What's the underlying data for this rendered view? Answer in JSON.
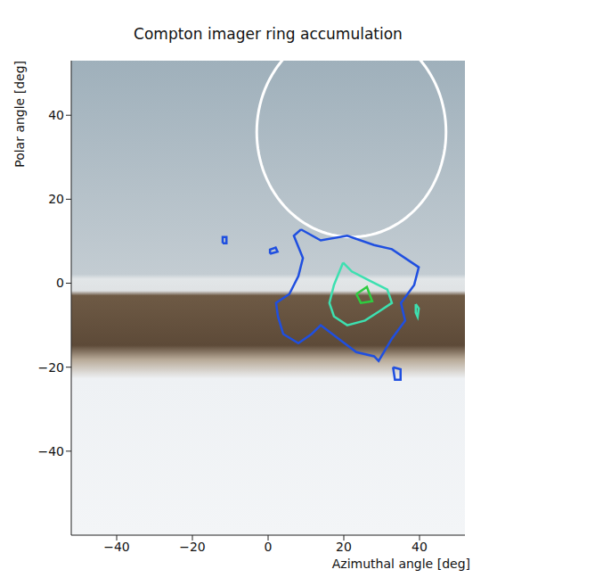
{
  "chart_data": {
    "type": "contour",
    "title": "Compton imager ring accumulation",
    "x_label": "Azimuthal angle [deg]",
    "y_label": "Polar angle [deg]",
    "xlim": [
      -52,
      52
    ],
    "ylim": [
      -60,
      53
    ],
    "xticks": [
      {
        "value": -40,
        "label": "−40"
      },
      {
        "value": -20,
        "label": "−20"
      },
      0,
      20,
      40
    ],
    "yticks": [
      {
        "value": -40,
        "label": "−40"
      },
      {
        "value": -20,
        "label": "−20"
      },
      0,
      20,
      40
    ],
    "grid": false,
    "ring": {
      "center": [
        22,
        36
      ],
      "radius": 25,
      "color": "#ffffff"
    },
    "contours": [
      {
        "color": "#1f4fe0",
        "points": [
          [
            8.7,
            12.8
          ],
          [
            13.9,
            10.2
          ],
          [
            20.9,
            11.3
          ],
          [
            28,
            9.1
          ],
          [
            32.7,
            8.1
          ],
          [
            39.8,
            3.8
          ],
          [
            38.6,
            -0.4
          ],
          [
            35.1,
            -4.7
          ],
          [
            36.2,
            -8.9
          ],
          [
            32.7,
            -13.2
          ],
          [
            29.2,
            -18.5
          ],
          [
            28,
            -17.4
          ],
          [
            23.3,
            -16.4
          ],
          [
            18.6,
            -13.2
          ],
          [
            13.9,
            -10
          ],
          [
            11.5,
            -12.1
          ],
          [
            8,
            -14.3
          ],
          [
            4,
            -12.1
          ],
          [
            2.6,
            -7.9
          ],
          [
            2.1,
            -4.7
          ],
          [
            5.6,
            -2.6
          ],
          [
            8,
            1.7
          ],
          [
            9.2,
            6
          ],
          [
            6.8,
            11.3
          ]
        ]
      },
      {
        "color": "#1f4fe0",
        "points": [
          [
            -12,
            9.5
          ],
          [
            -11,
            9.5
          ],
          [
            -11,
            11
          ],
          [
            -12,
            11
          ]
        ]
      },
      {
        "color": "#1f4fe0",
        "points": [
          [
            0.5,
            7
          ],
          [
            2.5,
            7.5
          ],
          [
            2,
            8.5
          ],
          [
            0.5,
            8
          ]
        ]
      },
      {
        "color": "#1f4fe0",
        "points": [
          [
            33,
            -20
          ],
          [
            35,
            -20.5
          ],
          [
            35,
            -23
          ],
          [
            33.5,
            -23
          ]
        ]
      },
      {
        "color": "#3de0b0",
        "points": [
          [
            19.8,
            4.9
          ],
          [
            22.1,
            2.8
          ],
          [
            26.8,
            0.6
          ],
          [
            31.5,
            -1.5
          ],
          [
            32.7,
            -4.7
          ],
          [
            29.2,
            -6.8
          ],
          [
            25.6,
            -8.9
          ],
          [
            20.9,
            -10
          ],
          [
            17.4,
            -7.9
          ],
          [
            16.2,
            -4.7
          ],
          [
            17.4,
            -0.4
          ]
        ]
      },
      {
        "color": "#3de0b0",
        "points": [
          [
            39,
            -5
          ],
          [
            39.8,
            -6
          ],
          [
            39.5,
            -8
          ],
          [
            39,
            -7
          ]
        ]
      },
      {
        "color": "#2ecc40",
        "points": [
          [
            23.3,
            -2.6
          ],
          [
            26.1,
            -0.9
          ],
          [
            27.5,
            -4.3
          ],
          [
            24.5,
            -4.7
          ]
        ]
      }
    ]
  }
}
